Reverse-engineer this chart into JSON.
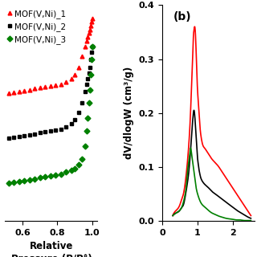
{
  "panel_a": {
    "xlabel": "Relative Pressure (P/P°)",
    "legend": [
      "MOF(V,Ni)_1",
      "MOF(V,Ni)_2",
      "MOF(V,Ni)_3"
    ],
    "colors": [
      "red",
      "black",
      "green"
    ],
    "markers": [
      "^",
      "s",
      "D"
    ],
    "xlim": [
      0.5,
      1.03
    ],
    "ylim": [
      0.0,
      1.15
    ],
    "x_ticks": [
      0.6,
      0.8,
      1.0
    ],
    "series1_x": [
      0.52,
      0.55,
      0.58,
      0.61,
      0.64,
      0.67,
      0.7,
      0.73,
      0.76,
      0.79,
      0.82,
      0.85,
      0.88,
      0.9,
      0.92,
      0.94,
      0.96,
      0.97,
      0.975,
      0.98,
      0.985,
      0.99,
      0.995,
      1.0
    ],
    "series1_y": [
      0.68,
      0.685,
      0.69,
      0.695,
      0.7,
      0.705,
      0.71,
      0.715,
      0.72,
      0.725,
      0.73,
      0.74,
      0.76,
      0.78,
      0.82,
      0.88,
      0.93,
      0.96,
      0.98,
      1.0,
      1.02,
      1.04,
      1.06,
      1.08
    ],
    "series2_x": [
      0.52,
      0.55,
      0.58,
      0.61,
      0.64,
      0.67,
      0.7,
      0.73,
      0.76,
      0.79,
      0.82,
      0.85,
      0.88,
      0.9,
      0.92,
      0.94,
      0.96,
      0.97,
      0.975,
      0.98,
      0.985,
      0.99,
      0.995,
      1.0
    ],
    "series2_y": [
      0.44,
      0.445,
      0.45,
      0.455,
      0.46,
      0.465,
      0.47,
      0.475,
      0.48,
      0.485,
      0.49,
      0.5,
      0.52,
      0.54,
      0.58,
      0.63,
      0.69,
      0.73,
      0.76,
      0.79,
      0.82,
      0.86,
      0.9,
      0.93
    ],
    "series3_x": [
      0.52,
      0.55,
      0.58,
      0.61,
      0.64,
      0.67,
      0.7,
      0.73,
      0.76,
      0.79,
      0.82,
      0.85,
      0.88,
      0.9,
      0.92,
      0.94,
      0.96,
      0.97,
      0.975,
      0.98,
      0.985,
      0.99,
      0.995,
      1.0
    ],
    "series3_y": [
      0.2,
      0.205,
      0.21,
      0.215,
      0.22,
      0.225,
      0.23,
      0.235,
      0.24,
      0.245,
      0.25,
      0.26,
      0.27,
      0.28,
      0.3,
      0.33,
      0.4,
      0.48,
      0.55,
      0.63,
      0.7,
      0.78,
      0.86,
      0.93
    ]
  },
  "panel_b": {
    "label": "(b)",
    "ylabel": "dV/dlogW (cm³/g)",
    "xlim": [
      0.0,
      2.6
    ],
    "ylim": [
      0.0,
      0.4
    ],
    "x_ticks": [
      0,
      1,
      2
    ],
    "y_ticks": [
      0.0,
      0.1,
      0.2,
      0.3,
      0.4
    ],
    "colors": [
      "red",
      "black",
      "green"
    ],
    "red_x": [
      0.3,
      0.4,
      0.5,
      0.55,
      0.6,
      0.65,
      0.7,
      0.75,
      0.8,
      0.83,
      0.86,
      0.88,
      0.9,
      0.92,
      0.94,
      0.96,
      0.98,
      1.0,
      1.02,
      1.04,
      1.06,
      1.08,
      1.1,
      1.15,
      1.2,
      1.25,
      1.3,
      1.4,
      1.5,
      1.6,
      1.7,
      1.8,
      1.9,
      2.0,
      2.1,
      2.2,
      2.3,
      2.4,
      2.5
    ],
    "red_y": [
      0.01,
      0.02,
      0.03,
      0.04,
      0.05,
      0.07,
      0.1,
      0.14,
      0.2,
      0.25,
      0.3,
      0.34,
      0.355,
      0.36,
      0.345,
      0.31,
      0.27,
      0.24,
      0.22,
      0.2,
      0.18,
      0.165,
      0.155,
      0.14,
      0.135,
      0.13,
      0.125,
      0.115,
      0.108,
      0.1,
      0.09,
      0.08,
      0.07,
      0.06,
      0.05,
      0.04,
      0.03,
      0.02,
      0.01
    ],
    "black_x": [
      0.3,
      0.4,
      0.5,
      0.55,
      0.6,
      0.65,
      0.7,
      0.75,
      0.8,
      0.83,
      0.86,
      0.88,
      0.9,
      0.92,
      0.94,
      0.96,
      0.98,
      1.0,
      1.02,
      1.04,
      1.06,
      1.08,
      1.1,
      1.15,
      1.2,
      1.25,
      1.3,
      1.4,
      1.5,
      1.6,
      1.7,
      1.8,
      1.9,
      2.0,
      2.1,
      2.2,
      2.3,
      2.4,
      2.5
    ],
    "black_y": [
      0.01,
      0.015,
      0.02,
      0.025,
      0.03,
      0.045,
      0.065,
      0.09,
      0.13,
      0.16,
      0.185,
      0.2,
      0.205,
      0.195,
      0.175,
      0.155,
      0.135,
      0.115,
      0.105,
      0.095,
      0.088,
      0.082,
      0.078,
      0.072,
      0.068,
      0.065,
      0.062,
      0.055,
      0.05,
      0.045,
      0.04,
      0.035,
      0.03,
      0.025,
      0.02,
      0.016,
      0.012,
      0.008,
      0.005
    ],
    "green_x": [
      0.3,
      0.4,
      0.5,
      0.55,
      0.6,
      0.65,
      0.68,
      0.7,
      0.72,
      0.74,
      0.76,
      0.78,
      0.8,
      0.82,
      0.84,
      0.86,
      0.88,
      0.9,
      0.92,
      0.95,
      1.0,
      1.05,
      1.1,
      1.2,
      1.3,
      1.4,
      1.5,
      1.6,
      1.7,
      1.8,
      1.9,
      2.0,
      2.1,
      2.2,
      2.3,
      2.4,
      2.5
    ],
    "green_y": [
      0.01,
      0.015,
      0.02,
      0.025,
      0.035,
      0.05,
      0.065,
      0.08,
      0.095,
      0.105,
      0.115,
      0.125,
      0.135,
      0.13,
      0.12,
      0.11,
      0.1,
      0.09,
      0.08,
      0.065,
      0.05,
      0.04,
      0.033,
      0.026,
      0.02,
      0.015,
      0.012,
      0.009,
      0.007,
      0.005,
      0.004,
      0.003,
      0.002,
      0.002,
      0.001,
      0.001,
      0.001
    ]
  },
  "background_color": "#ffffff",
  "tick_fontsize": 8,
  "label_fontsize": 8.5,
  "legend_fontsize": 7.5
}
